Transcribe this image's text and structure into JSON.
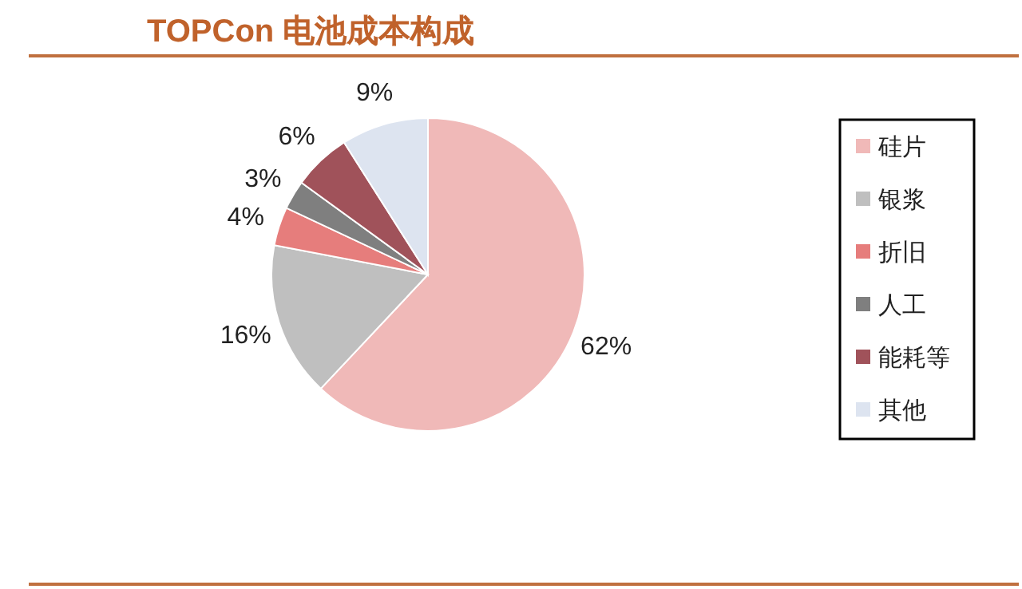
{
  "chart_data": {
    "type": "pie",
    "title": "TOPCon 电池成本构成",
    "categories": [
      "硅片",
      "银浆",
      "折旧",
      "人工",
      "能耗等",
      "其他"
    ],
    "values": [
      62,
      16,
      4,
      3,
      6,
      9
    ],
    "colors": [
      "#f0b9b8",
      "#bfbfbf",
      "#e67d7c",
      "#7f7f7f",
      "#a0525a",
      "#dde4f0"
    ],
    "value_labels": [
      "62%",
      "16%",
      "4%",
      "3%",
      "6%",
      "9%"
    ],
    "legend": "right"
  }
}
